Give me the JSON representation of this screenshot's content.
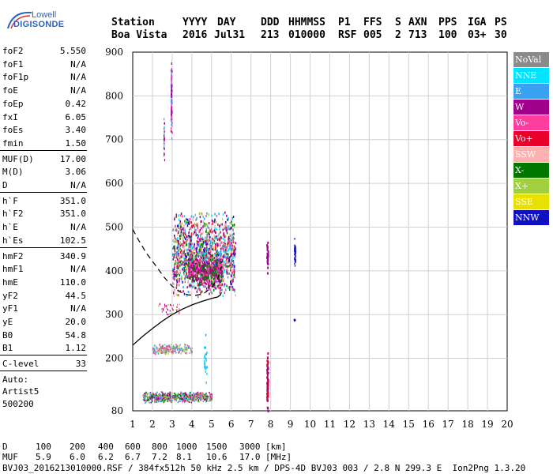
{
  "logo": {
    "line1": "Lowell",
    "line2": "DIGISONDE"
  },
  "header": {
    "labels": [
      "Station",
      "YYYY",
      "DAY",
      "DDD",
      "HHMMSS",
      "P1",
      "FFS",
      "S",
      "AXN",
      "PPS",
      "IGA",
      "PS"
    ],
    "values": [
      "Boa Vista",
      "2016",
      "Jul31",
      "213",
      "010000",
      "RSF",
      "005",
      "2",
      "713",
      "100",
      "03+",
      "30"
    ]
  },
  "params": {
    "group1": [
      {
        "k": "foF2",
        "v": "5.550"
      },
      {
        "k": "foF1",
        "v": "N/A"
      },
      {
        "k": "foF1p",
        "v": "N/A"
      },
      {
        "k": "foE",
        "v": "N/A"
      },
      {
        "k": "foEp",
        "v": "0.42"
      },
      {
        "k": "fxI",
        "v": "6.05"
      },
      {
        "k": "foEs",
        "v": "3.40"
      },
      {
        "k": "fmin",
        "v": "1.50"
      }
    ],
    "group2": [
      {
        "k": "MUF(D)",
        "v": "17.00"
      },
      {
        "k": "M(D)",
        "v": "3.06"
      },
      {
        "k": "D",
        "v": "N/A"
      }
    ],
    "group3": [
      {
        "k": "h`F",
        "v": "351.0"
      },
      {
        "k": "h`F2",
        "v": "351.0"
      },
      {
        "k": "h`E",
        "v": "N/A"
      },
      {
        "k": "h`Es",
        "v": "102.5"
      }
    ],
    "group4": [
      {
        "k": "hmF2",
        "v": "340.9"
      },
      {
        "k": "hmF1",
        "v": "N/A"
      },
      {
        "k": "hmE",
        "v": "110.0"
      },
      {
        "k": "yF2",
        "v": "44.5"
      },
      {
        "k": "yF1",
        "v": "N/A"
      },
      {
        "k": "yE",
        "v": "20.0"
      },
      {
        "k": "B0",
        "v": "54.8"
      },
      {
        "k": "B1",
        "v": "1.12"
      }
    ],
    "clevel": {
      "k": "C-level",
      "v": "33"
    },
    "auto": [
      "Auto:",
      "Artist5",
      "500200"
    ]
  },
  "legend": [
    {
      "label": "NoVal",
      "bg": "#8a8a8a",
      "fg": "#ffffff"
    },
    {
      "label": "NNE",
      "bg": "#00e5ff",
      "fg": "#ffffff"
    },
    {
      "label": "E",
      "bg": "#3aa0f0",
      "fg": "#ffffff"
    },
    {
      "label": "W",
      "bg": "#a0008c",
      "fg": "#ffffff"
    },
    {
      "label": "Vo-",
      "bg": "#ff3ca0",
      "fg": "#ffffff"
    },
    {
      "label": "Vo+",
      "bg": "#e8002a",
      "fg": "#ffffff"
    },
    {
      "label": "SSW",
      "bg": "#ffb0b0",
      "fg": "#ffffff"
    },
    {
      "label": "X-",
      "bg": "#007800",
      "fg": "#ffffff"
    },
    {
      "label": "X+",
      "bg": "#a0d040",
      "fg": "#ffffff"
    },
    {
      "label": "SSE",
      "bg": "#e8e000",
      "fg": "#ffffff"
    },
    {
      "label": "NNW",
      "bg": "#1010c0",
      "fg": "#ffffff"
    }
  ],
  "footer": {
    "d_row": {
      "label": "D",
      "values": [
        "100",
        "200",
        "400",
        "600",
        "800",
        "1000",
        "1500",
        "3000"
      ],
      "unit": "[km]"
    },
    "muf_row": {
      "label": "MUF",
      "values": [
        "5.9",
        "6.0",
        "6.2",
        "6.7",
        "7.2",
        "8.1",
        "10.6",
        "17.0"
      ],
      "unit": "[MHz]"
    },
    "file_line": "BVJ03_2016213010000.RSF / 384fx512h 50 kHz 2.5 km / DPS-4D BVJ03 003 / 2.8 N 299.3 E  Ion2Png 1.3.20"
  },
  "chart_data": {
    "type": "scatter",
    "title": "",
    "xlabel": "",
    "ylabel": "",
    "xlim": [
      1,
      20
    ],
    "ylim": [
      80,
      900
    ],
    "x_ticks": [
      1,
      2,
      3,
      4,
      5,
      6,
      7,
      8,
      9,
      10,
      11,
      12,
      13,
      14,
      15,
      16,
      17,
      18,
      19,
      20
    ],
    "y_ticks": [
      80,
      200,
      300,
      400,
      500,
      600,
      700,
      800,
      900
    ],
    "grid": true,
    "legend_placement": "right",
    "traces": {
      "F2_main_cloud": {
        "x_range": [
          3.0,
          6.2
        ],
        "y_range": [
          340,
          540
        ]
      },
      "E_layer_echo": {
        "x_range": [
          1.5,
          5.0
        ],
        "y_range": [
          100,
          125
        ]
      },
      "Es_second_hop": {
        "x_range": [
          2.0,
          4.0
        ],
        "y_range": [
          210,
          235
        ]
      },
      "vertical_streak_3MHz": {
        "x": 2.95,
        "y_range": [
          690,
          890
        ]
      },
      "line_8MHz": {
        "x": 7.8,
        "y_range": [
          80,
          470
        ]
      },
      "line_9MHz": {
        "x": 9.2,
        "y_range": [
          410,
          480
        ]
      }
    },
    "profile_solid": [
      [
        1.0,
        230
      ],
      [
        1.5,
        250
      ],
      [
        2.0,
        268
      ],
      [
        2.5,
        285
      ],
      [
        3.0,
        300
      ],
      [
        3.5,
        312
      ],
      [
        4.0,
        322
      ],
      [
        4.5,
        330
      ],
      [
        5.0,
        337
      ],
      [
        5.3,
        340
      ],
      [
        5.45,
        345
      ],
      [
        5.5,
        351
      ]
    ],
    "profile_dashed": [
      [
        1.0,
        495
      ],
      [
        1.3,
        470
      ],
      [
        1.7,
        440
      ],
      [
        2.2,
        410
      ],
      [
        2.6,
        385
      ],
      [
        3.0,
        365
      ],
      [
        3.4,
        352
      ],
      [
        3.8,
        345
      ],
      [
        4.2,
        344
      ],
      [
        4.6,
        348
      ],
      [
        5.0,
        362
      ],
      [
        5.3,
        380
      ],
      [
        5.5,
        410
      ]
    ]
  }
}
